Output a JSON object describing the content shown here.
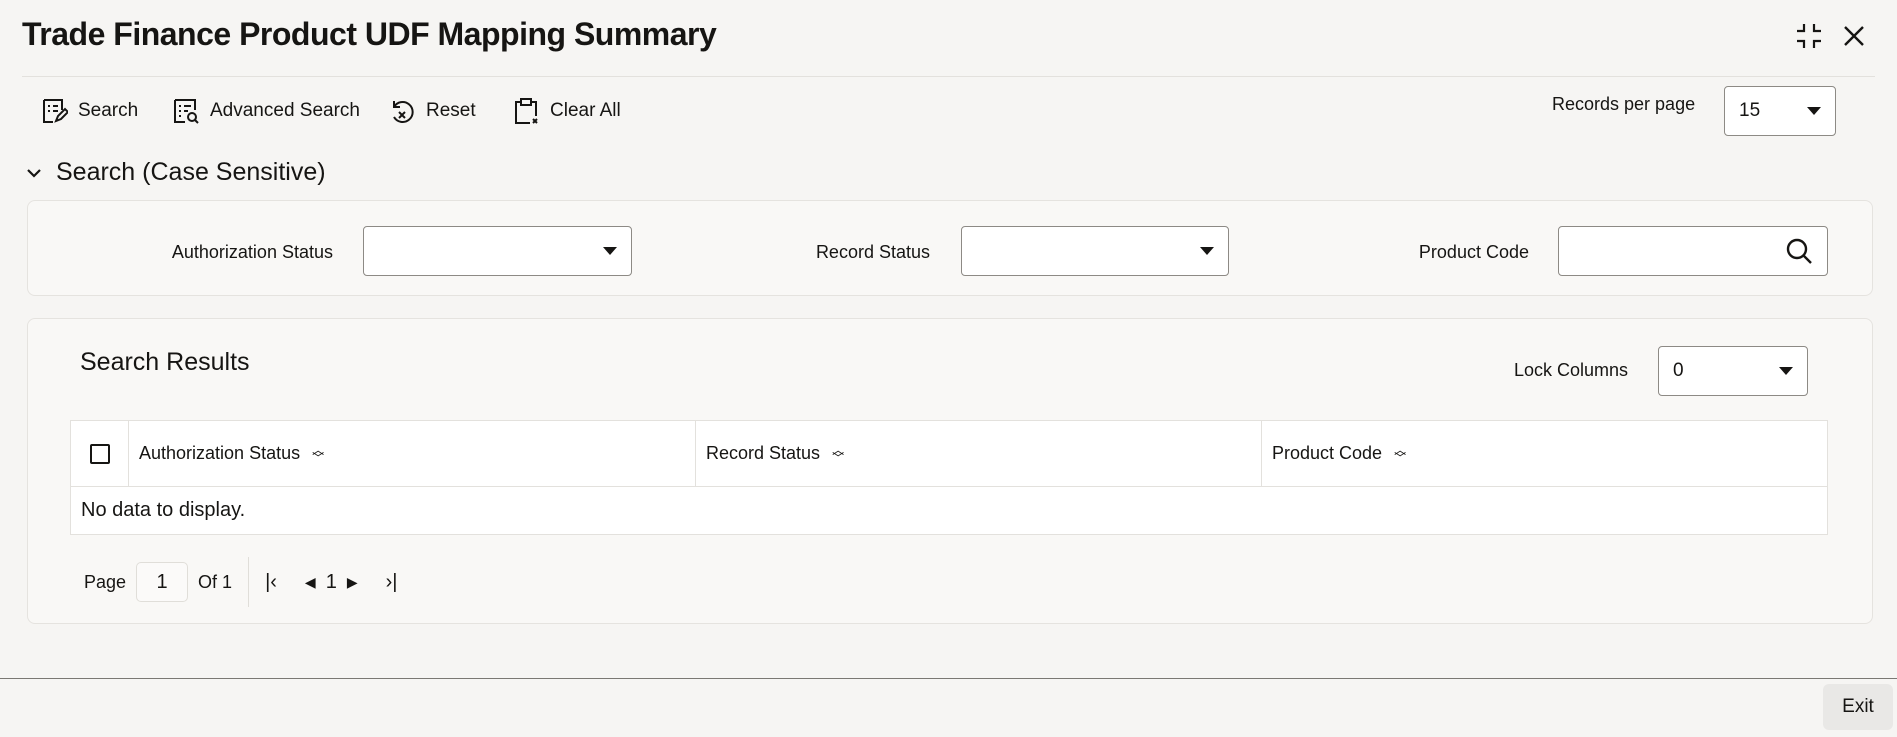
{
  "header": {
    "title": "Trade Finance Product UDF Mapping Summary",
    "icons": [
      "collapse-icon",
      "close-icon"
    ]
  },
  "toolbar": {
    "search": "Search",
    "advanced_search": "Advanced Search",
    "reset": "Reset",
    "clear_all": "Clear All",
    "records_per_page_label": "Records per page",
    "records_per_page_value": "15"
  },
  "search_section": {
    "title": "Search (Case Sensitive)",
    "fields": [
      {
        "label": "Authorization Status",
        "value": ""
      },
      {
        "label": "Record Status",
        "value": ""
      },
      {
        "label": "Product Code",
        "value": ""
      }
    ]
  },
  "results": {
    "title": "Search Results",
    "lock_columns_label": "Lock Columns",
    "lock_columns_value": "0",
    "columns": [
      "Authorization Status",
      "Record Status",
      "Product Code"
    ],
    "empty_message": "No data to display.",
    "pagination": {
      "page_label": "Page",
      "page_value": "1",
      "of_label": "Of 1",
      "current": "1"
    }
  },
  "footer": {
    "exit": "Exit"
  }
}
